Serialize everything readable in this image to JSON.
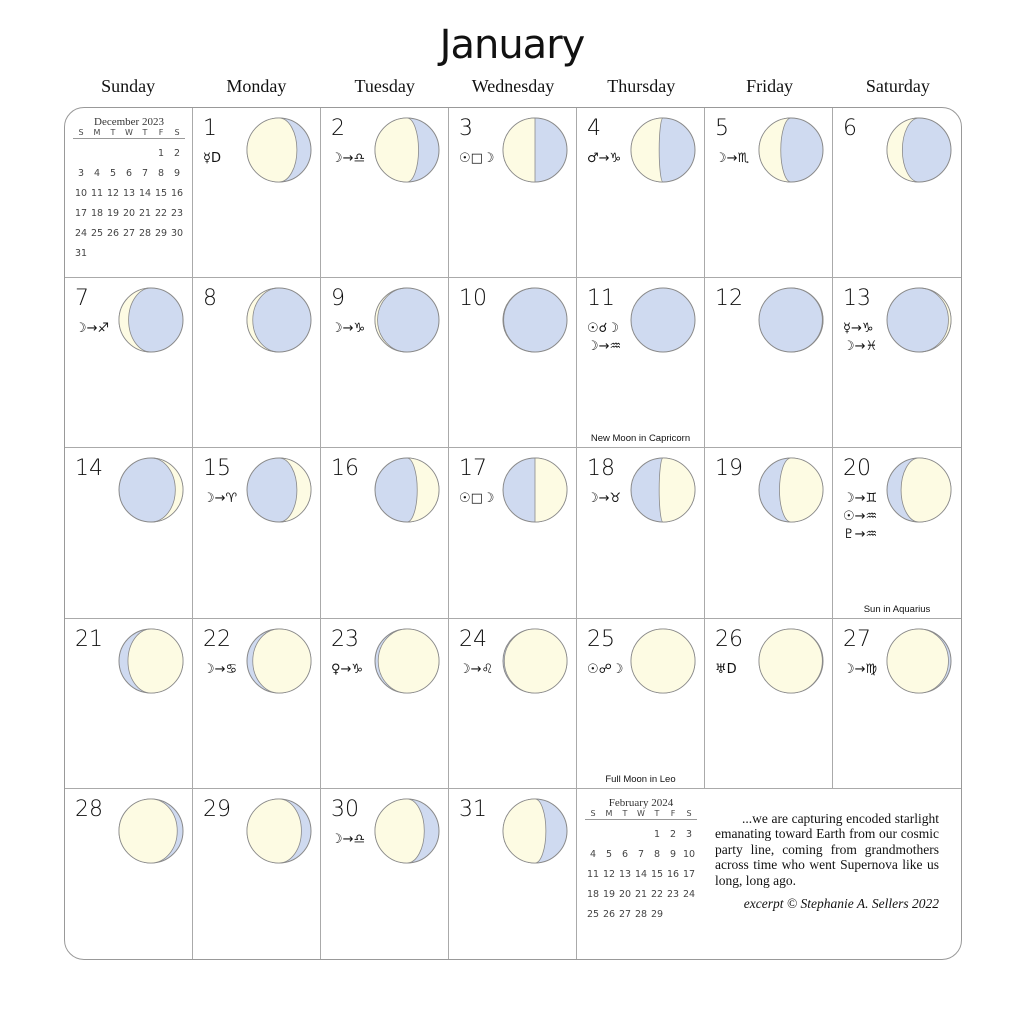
{
  "title": "January",
  "weekdays": [
    "Sunday",
    "Monday",
    "Tuesday",
    "Wednesday",
    "Thursday",
    "Friday",
    "Saturday"
  ],
  "colors": {
    "moon_lit": "#fdfbe3",
    "moon_dark": "#cfdaf0",
    "moon_outline": "#8a8a8a",
    "grid_line": "#aaaaaa"
  },
  "prev_month": {
    "title": "December 2023",
    "headers": [
      "S",
      "M",
      "T",
      "W",
      "T",
      "F",
      "S"
    ],
    "start_weekday": 5,
    "days": [
      "1",
      "2",
      "3",
      "4",
      "5",
      "6",
      "7",
      "8",
      "9",
      "10",
      "11",
      "12",
      "13",
      "14",
      "15",
      "16",
      "17",
      "18",
      "19",
      "20",
      "21",
      "22",
      "23",
      "24",
      "25",
      "26",
      "27",
      "28",
      "29",
      "30",
      "31"
    ]
  },
  "next_month": {
    "title": "February 2024",
    "headers": [
      "S",
      "M",
      "T",
      "W",
      "T",
      "F",
      "S"
    ],
    "start_weekday": 4,
    "days": [
      "1",
      "2",
      "3",
      "4",
      "5",
      "6",
      "7",
      "8",
      "9",
      "10",
      "11",
      "12",
      "13",
      "14",
      "15",
      "16",
      "17",
      "18",
      "19",
      "20",
      "21",
      "22",
      "23",
      "24",
      "25",
      "26",
      "27",
      "28",
      "29"
    ]
  },
  "first_weekday": 1,
  "days": [
    {
      "n": "1",
      "sym": [
        "☿D"
      ],
      "illum": 78,
      "waxing": false
    },
    {
      "n": "2",
      "sym": [
        "☽→♎"
      ],
      "illum": 68,
      "waxing": false
    },
    {
      "n": "3",
      "sym": [
        "☉□☽"
      ],
      "illum": 50,
      "waxing": false
    },
    {
      "n": "4",
      "sym": [
        "♂→♑"
      ],
      "illum": 44,
      "waxing": false
    },
    {
      "n": "5",
      "sym": [
        "☽→♏"
      ],
      "illum": 34,
      "waxing": false
    },
    {
      "n": "6",
      "sym": [],
      "illum": 24,
      "waxing": false
    },
    {
      "n": "7",
      "sym": [
        "☽→♐"
      ],
      "illum": 15,
      "waxing": false
    },
    {
      "n": "8",
      "sym": [],
      "illum": 9,
      "waxing": false
    },
    {
      "n": "9",
      "sym": [
        "☽→♑"
      ],
      "illum": 4,
      "waxing": false
    },
    {
      "n": "10",
      "sym": [],
      "illum": 1,
      "waxing": false
    },
    {
      "n": "11",
      "sym": [
        "☉☌☽",
        "☽→♒"
      ],
      "illum": 0,
      "waxing": true,
      "event": "New Moon in Capricorn"
    },
    {
      "n": "12",
      "sym": [],
      "illum": 1,
      "waxing": true
    },
    {
      "n": "13",
      "sym": [
        "☿→♑",
        "☽→♓"
      ],
      "illum": 4,
      "waxing": true
    },
    {
      "n": "14",
      "sym": [],
      "illum": 12,
      "waxing": true
    },
    {
      "n": "15",
      "sym": [
        "☽→♈"
      ],
      "illum": 22,
      "waxing": true
    },
    {
      "n": "16",
      "sym": [],
      "illum": 34,
      "waxing": true
    },
    {
      "n": "17",
      "sym": [
        "☉□☽"
      ],
      "illum": 50,
      "waxing": true
    },
    {
      "n": "18",
      "sym": [
        "☽→♉"
      ],
      "illum": 56,
      "waxing": true
    },
    {
      "n": "19",
      "sym": [],
      "illum": 68,
      "waxing": true
    },
    {
      "n": "20",
      "sym": [
        "☽→♊",
        "☉→♒",
        "♇→♒"
      ],
      "illum": 78,
      "waxing": true,
      "event": "Sun in Aquarius"
    },
    {
      "n": "21",
      "sym": [],
      "illum": 86,
      "waxing": true
    },
    {
      "n": "22",
      "sym": [
        "☽→♋"
      ],
      "illum": 91,
      "waxing": true
    },
    {
      "n": "23",
      "sym": [
        "♀→♑"
      ],
      "illum": 95,
      "waxing": true
    },
    {
      "n": "24",
      "sym": [
        "☽→♌"
      ],
      "illum": 98,
      "waxing": true
    },
    {
      "n": "25",
      "sym": [
        "☉☍☽"
      ],
      "illum": 100,
      "waxing": false,
      "event": "Full Moon in Leo"
    },
    {
      "n": "26",
      "sym": [
        "♅D"
      ],
      "illum": 99,
      "waxing": false
    },
    {
      "n": "27",
      "sym": [
        "☽→♍"
      ],
      "illum": 96,
      "waxing": false
    },
    {
      "n": "28",
      "sym": [],
      "illum": 91,
      "waxing": false
    },
    {
      "n": "29",
      "sym": [],
      "illum": 85,
      "waxing": false
    },
    {
      "n": "30",
      "sym": [
        "☽→♎"
      ],
      "illum": 77,
      "waxing": false
    },
    {
      "n": "31",
      "sym": [],
      "illum": 67,
      "waxing": false
    }
  ],
  "quote": {
    "text": "...we are capturing encoded starlight emanating toward Earth from our cosmic party line, coming from grandmothers across time who went Supernova like us long, long ago.",
    "citation": "excerpt © Stephanie A. Sellers 2022"
  }
}
